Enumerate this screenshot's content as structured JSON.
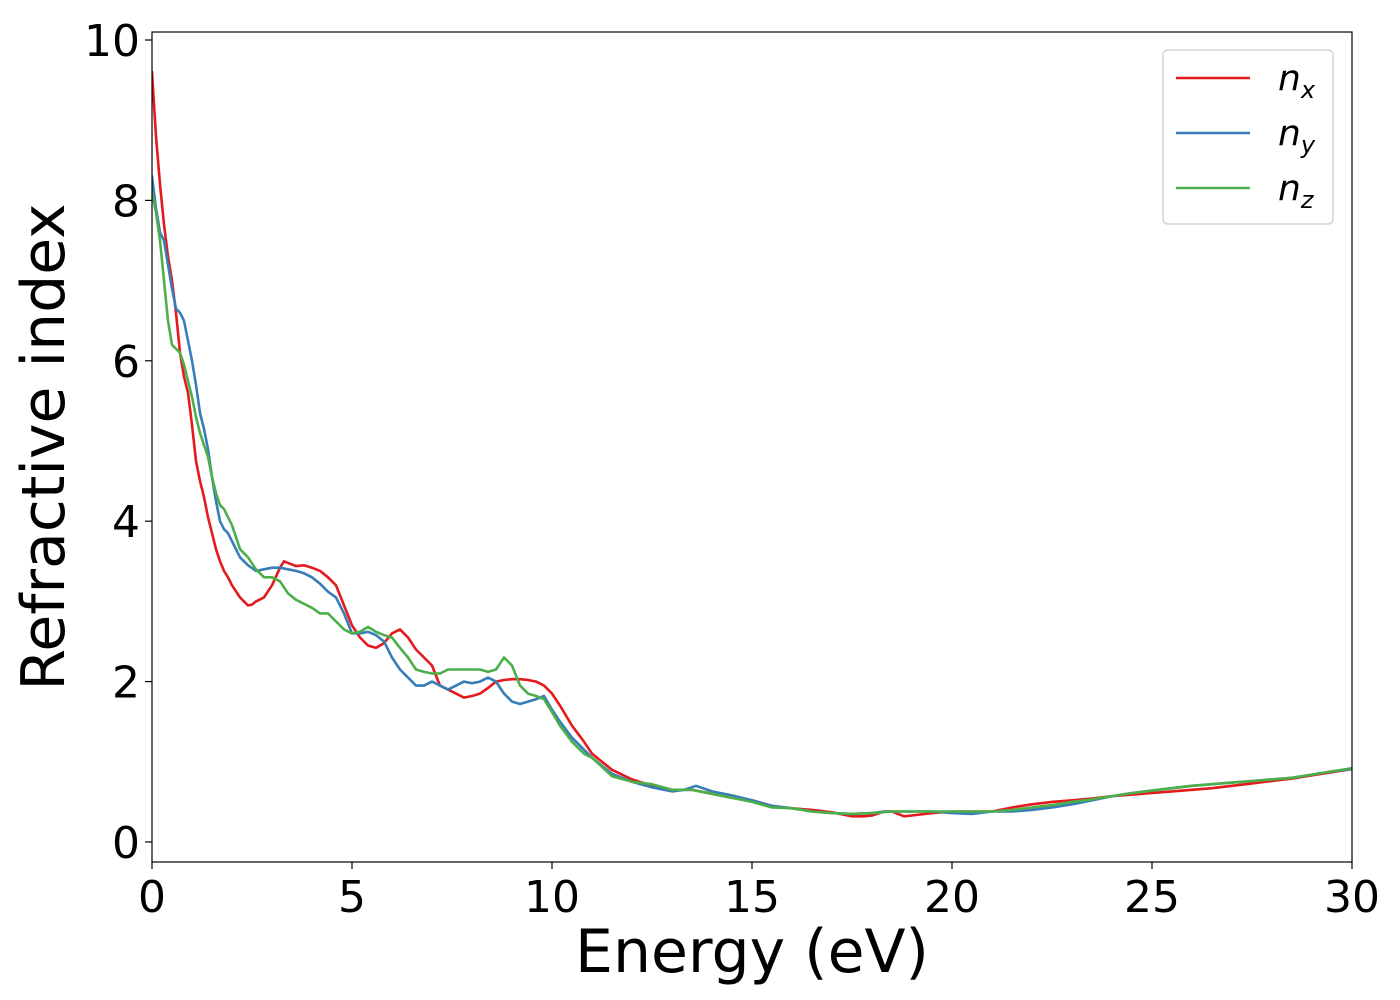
{
  "chart_data": {
    "type": "line",
    "title": "",
    "xlabel": "Energy (eV)",
    "ylabel": "Refractive index",
    "xlim": [
      0,
      30
    ],
    "ylim": [
      -0.25,
      10.1
    ],
    "xticks": [
      0,
      5,
      10,
      15,
      20,
      25,
      30
    ],
    "yticks": [
      0,
      2,
      4,
      6,
      8,
      10
    ],
    "grid": false,
    "legend_position": "top-right",
    "series": [
      {
        "name": "n",
        "subscript": "x",
        "color": "#e41a1c",
        "x": [
          0,
          0.1,
          0.2,
          0.3,
          0.4,
          0.5,
          0.6,
          0.7,
          0.8,
          0.9,
          1.0,
          1.1,
          1.2,
          1.3,
          1.4,
          1.5,
          1.6,
          1.7,
          1.8,
          1.9,
          2.0,
          2.2,
          2.4,
          2.5,
          2.6,
          2.8,
          3.0,
          3.2,
          3.3,
          3.4,
          3.6,
          3.8,
          4.0,
          4.2,
          4.4,
          4.6,
          4.8,
          5.0,
          5.2,
          5.4,
          5.6,
          5.8,
          6.0,
          6.2,
          6.4,
          6.6,
          6.8,
          7.0,
          7.2,
          7.4,
          7.6,
          7.8,
          8.0,
          8.2,
          8.4,
          8.6,
          8.8,
          9.0,
          9.2,
          9.4,
          9.6,
          9.8,
          10.0,
          10.2,
          10.5,
          10.8,
          11.0,
          11.5,
          12.0,
          12.5,
          13.0,
          13.5,
          14.0,
          14.5,
          15.0,
          15.5,
          16.0,
          16.5,
          17.0,
          17.5,
          17.8,
          18.0,
          18.3,
          18.5,
          18.8,
          19.0,
          19.5,
          20.0,
          20.5,
          21.0,
          21.5,
          22.0,
          22.5,
          23.0,
          23.5,
          24.0,
          24.5,
          25.0,
          25.5,
          26.0,
          26.5,
          27.0,
          27.5,
          28.0,
          28.5,
          29.0,
          29.5,
          30.0
        ],
        "y": [
          9.6,
          8.8,
          8.2,
          7.7,
          7.3,
          7.0,
          6.6,
          6.1,
          5.8,
          5.6,
          5.2,
          4.75,
          4.5,
          4.3,
          4.05,
          3.85,
          3.65,
          3.5,
          3.38,
          3.3,
          3.2,
          3.05,
          2.95,
          2.96,
          3.0,
          3.05,
          3.2,
          3.42,
          3.5,
          3.48,
          3.44,
          3.45,
          3.42,
          3.38,
          3.3,
          3.2,
          2.95,
          2.7,
          2.55,
          2.45,
          2.42,
          2.48,
          2.6,
          2.65,
          2.55,
          2.4,
          2.3,
          2.2,
          1.95,
          1.9,
          1.85,
          1.8,
          1.82,
          1.85,
          1.92,
          2.0,
          2.02,
          2.03,
          2.03,
          2.02,
          2.0,
          1.95,
          1.85,
          1.7,
          1.45,
          1.25,
          1.1,
          0.9,
          0.78,
          0.7,
          0.65,
          0.65,
          0.6,
          0.55,
          0.52,
          0.45,
          0.42,
          0.4,
          0.37,
          0.32,
          0.32,
          0.33,
          0.38,
          0.38,
          0.32,
          0.33,
          0.36,
          0.38,
          0.38,
          0.38,
          0.43,
          0.47,
          0.5,
          0.52,
          0.54,
          0.57,
          0.59,
          0.61,
          0.63,
          0.65,
          0.67,
          0.7,
          0.73,
          0.76,
          0.79,
          0.83,
          0.87,
          0.91
        ]
      },
      {
        "name": "n",
        "subscript": "y",
        "color": "#377eb8",
        "x": [
          0,
          0.1,
          0.2,
          0.3,
          0.4,
          0.5,
          0.6,
          0.7,
          0.8,
          0.9,
          1.0,
          1.1,
          1.2,
          1.3,
          1.4,
          1.5,
          1.6,
          1.7,
          1.8,
          1.9,
          2.0,
          2.2,
          2.4,
          2.6,
          2.8,
          3.0,
          3.2,
          3.4,
          3.6,
          3.8,
          4.0,
          4.2,
          4.4,
          4.6,
          4.8,
          5.0,
          5.2,
          5.4,
          5.6,
          5.8,
          6.0,
          6.2,
          6.4,
          6.6,
          6.8,
          7.0,
          7.2,
          7.4,
          7.6,
          7.8,
          8.0,
          8.2,
          8.4,
          8.6,
          8.8,
          9.0,
          9.2,
          9.4,
          9.6,
          9.8,
          10.0,
          10.2,
          10.5,
          10.8,
          11.0,
          11.5,
          12.0,
          12.5,
          13.0,
          13.3,
          13.6,
          14.0,
          14.5,
          15.0,
          15.5,
          16.0,
          16.5,
          17.0,
          17.5,
          18.0,
          18.3,
          18.6,
          19.0,
          19.5,
          20.0,
          20.5,
          21.0,
          21.5,
          22.0,
          22.5,
          23.0,
          23.5,
          24.0,
          24.5,
          25.0,
          25.5,
          26.0,
          26.5,
          27.0,
          27.5,
          28.0,
          28.5,
          29.0,
          29.5,
          30.0
        ],
        "y": [
          8.3,
          7.9,
          7.6,
          7.5,
          7.2,
          6.9,
          6.65,
          6.6,
          6.5,
          6.25,
          6.0,
          5.7,
          5.35,
          5.15,
          4.9,
          4.55,
          4.25,
          4.0,
          3.9,
          3.85,
          3.75,
          3.55,
          3.45,
          3.38,
          3.4,
          3.42,
          3.42,
          3.4,
          3.38,
          3.35,
          3.3,
          3.22,
          3.12,
          3.05,
          2.85,
          2.6,
          2.6,
          2.62,
          2.58,
          2.5,
          2.3,
          2.15,
          2.05,
          1.95,
          1.95,
          2.0,
          1.95,
          1.9,
          1.95,
          2.0,
          1.98,
          2.0,
          2.05,
          2.0,
          1.85,
          1.75,
          1.72,
          1.75,
          1.78,
          1.82,
          1.65,
          1.5,
          1.3,
          1.15,
          1.05,
          0.85,
          0.75,
          0.68,
          0.63,
          0.65,
          0.7,
          0.63,
          0.58,
          0.52,
          0.45,
          0.42,
          0.38,
          0.36,
          0.35,
          0.36,
          0.38,
          0.38,
          0.38,
          0.38,
          0.36,
          0.35,
          0.38,
          0.38,
          0.4,
          0.43,
          0.47,
          0.52,
          0.57,
          0.61,
          0.64,
          0.67,
          0.7,
          0.72,
          0.74,
          0.76,
          0.78,
          0.8,
          0.84,
          0.88,
          0.91
        ]
      },
      {
        "name": "n",
        "subscript": "z",
        "color": "#4daf4a",
        "x": [
          0,
          0.1,
          0.2,
          0.3,
          0.4,
          0.5,
          0.6,
          0.7,
          0.8,
          0.9,
          1.0,
          1.1,
          1.2,
          1.3,
          1.4,
          1.5,
          1.6,
          1.7,
          1.8,
          1.9,
          2.0,
          2.2,
          2.4,
          2.6,
          2.8,
          3.0,
          3.2,
          3.4,
          3.6,
          3.8,
          4.0,
          4.2,
          4.4,
          4.6,
          4.8,
          5.0,
          5.2,
          5.4,
          5.6,
          5.8,
          6.0,
          6.2,
          6.4,
          6.6,
          6.8,
          7.0,
          7.2,
          7.4,
          7.6,
          7.8,
          8.0,
          8.2,
          8.4,
          8.6,
          8.8,
          9.0,
          9.2,
          9.4,
          9.6,
          9.8,
          10.0,
          10.2,
          10.5,
          10.8,
          11.0,
          11.5,
          12.0,
          12.5,
          13.0,
          13.5,
          14.0,
          14.5,
          15.0,
          15.5,
          16.0,
          16.5,
          17.0,
          17.5,
          18.0,
          18.5,
          19.0,
          19.5,
          20.0,
          20.5,
          21.0,
          21.5,
          22.0,
          22.5,
          23.0,
          23.5,
          24.0,
          24.5,
          25.0,
          25.5,
          26.0,
          26.5,
          27.0,
          27.5,
          28.0,
          28.5,
          29.0,
          29.5,
          30.0
        ],
        "y": [
          8.1,
          7.85,
          7.5,
          7.0,
          6.5,
          6.2,
          6.15,
          6.1,
          5.95,
          5.75,
          5.55,
          5.3,
          5.1,
          4.95,
          4.8,
          4.55,
          4.35,
          4.2,
          4.15,
          4.05,
          3.95,
          3.65,
          3.55,
          3.4,
          3.3,
          3.3,
          3.25,
          3.1,
          3.02,
          2.97,
          2.92,
          2.85,
          2.85,
          2.75,
          2.65,
          2.6,
          2.62,
          2.68,
          2.62,
          2.58,
          2.55,
          2.42,
          2.3,
          2.15,
          2.12,
          2.1,
          2.1,
          2.15,
          2.15,
          2.15,
          2.15,
          2.15,
          2.12,
          2.15,
          2.3,
          2.2,
          1.95,
          1.85,
          1.82,
          1.78,
          1.62,
          1.45,
          1.25,
          1.1,
          1.05,
          0.82,
          0.75,
          0.72,
          0.65,
          0.65,
          0.6,
          0.55,
          0.5,
          0.43,
          0.42,
          0.38,
          0.36,
          0.35,
          0.36,
          0.38,
          0.38,
          0.38,
          0.38,
          0.38,
          0.38,
          0.4,
          0.43,
          0.46,
          0.5,
          0.53,
          0.57,
          0.61,
          0.64,
          0.67,
          0.7,
          0.72,
          0.74,
          0.76,
          0.78,
          0.8,
          0.84,
          0.88,
          0.92
        ]
      }
    ]
  }
}
